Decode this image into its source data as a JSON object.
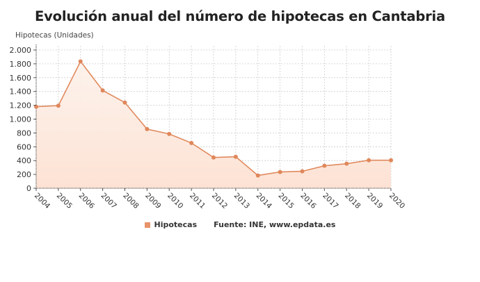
{
  "chart_data": {
    "type": "area",
    "title": "Evolución anual del número de hipotecas en Cantabria",
    "ylabel": "Hipotecas (Unidades)",
    "xlabel": "",
    "categories": [
      "2004",
      "2005",
      "2006",
      "2007",
      "2008",
      "2009",
      "2010",
      "2011",
      "2012",
      "2013",
      "2014",
      "2015",
      "2016",
      "2017",
      "2018",
      "2019",
      "2020"
    ],
    "series": [
      {
        "name": "Hipotecas",
        "values": [
          1180,
          1195,
          1835,
          1415,
          1240,
          855,
          785,
          655,
          445,
          455,
          185,
          235,
          245,
          325,
          355,
          405,
          405
        ]
      }
    ],
    "ylim": [
      0,
      2000
    ],
    "yticks": [
      "0",
      "200",
      "400",
      "600",
      "800",
      "1.000",
      "1.200",
      "1.400",
      "1.600",
      "1.800",
      "2.000"
    ],
    "ytick_values": [
      0,
      200,
      400,
      600,
      800,
      1000,
      1200,
      1400,
      1600,
      1800,
      2000
    ],
    "grid": true,
    "legend_position": "bottom",
    "source": "Fuente: INE, www.epdata.es"
  },
  "colors": {
    "line": "#e08a5e",
    "marker": "#e0875b",
    "fill_top": "#fdeee6",
    "fill_bottom": "#fde4d8",
    "grid": "#cccccc",
    "axis": "#555555"
  },
  "legend": {
    "series_label": "Hipotecas",
    "source": "Fuente: INE, www.epdata.es"
  }
}
